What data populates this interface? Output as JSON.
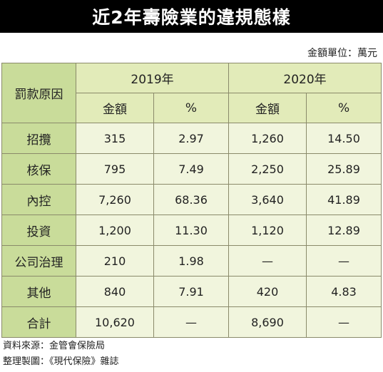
{
  "title": "近2年壽險業的違規態樣",
  "unit_note": "金額單位：萬元",
  "table": {
    "cause_header": "罰款原因",
    "years": [
      "2019年",
      "2020年"
    ],
    "sub_headers": [
      "金額",
      "%",
      "金額",
      "%"
    ],
    "rows": [
      {
        "cause": "招攬",
        "values": [
          "315",
          "2.97",
          "1,260",
          "14.50"
        ]
      },
      {
        "cause": "核保",
        "values": [
          "795",
          "7.49",
          "2,250",
          "25.89"
        ]
      },
      {
        "cause": "內控",
        "values": [
          "7,260",
          "68.36",
          "3,640",
          "41.89"
        ]
      },
      {
        "cause": "投資",
        "values": [
          "1,200",
          "11.30",
          "1,120",
          "12.89"
        ]
      },
      {
        "cause": "公司治理",
        "values": [
          "210",
          "1.98",
          "—",
          "—"
        ]
      },
      {
        "cause": "其他",
        "values": [
          "840",
          "7.91",
          "420",
          "4.83"
        ]
      },
      {
        "cause": "合計",
        "values": [
          "10,620",
          "—",
          "8,690",
          "—"
        ]
      }
    ]
  },
  "footer": {
    "source": "資料來源：金管會保險局",
    "compiled": "整理製圖：《現代保險》雜誌"
  },
  "colors": {
    "title_bg": "#000000",
    "cause_bg": "#c9dc9a",
    "header_bg": "#e2ebb9",
    "cell_bg": "#f1f5dd",
    "border": "#8a8a6a"
  }
}
